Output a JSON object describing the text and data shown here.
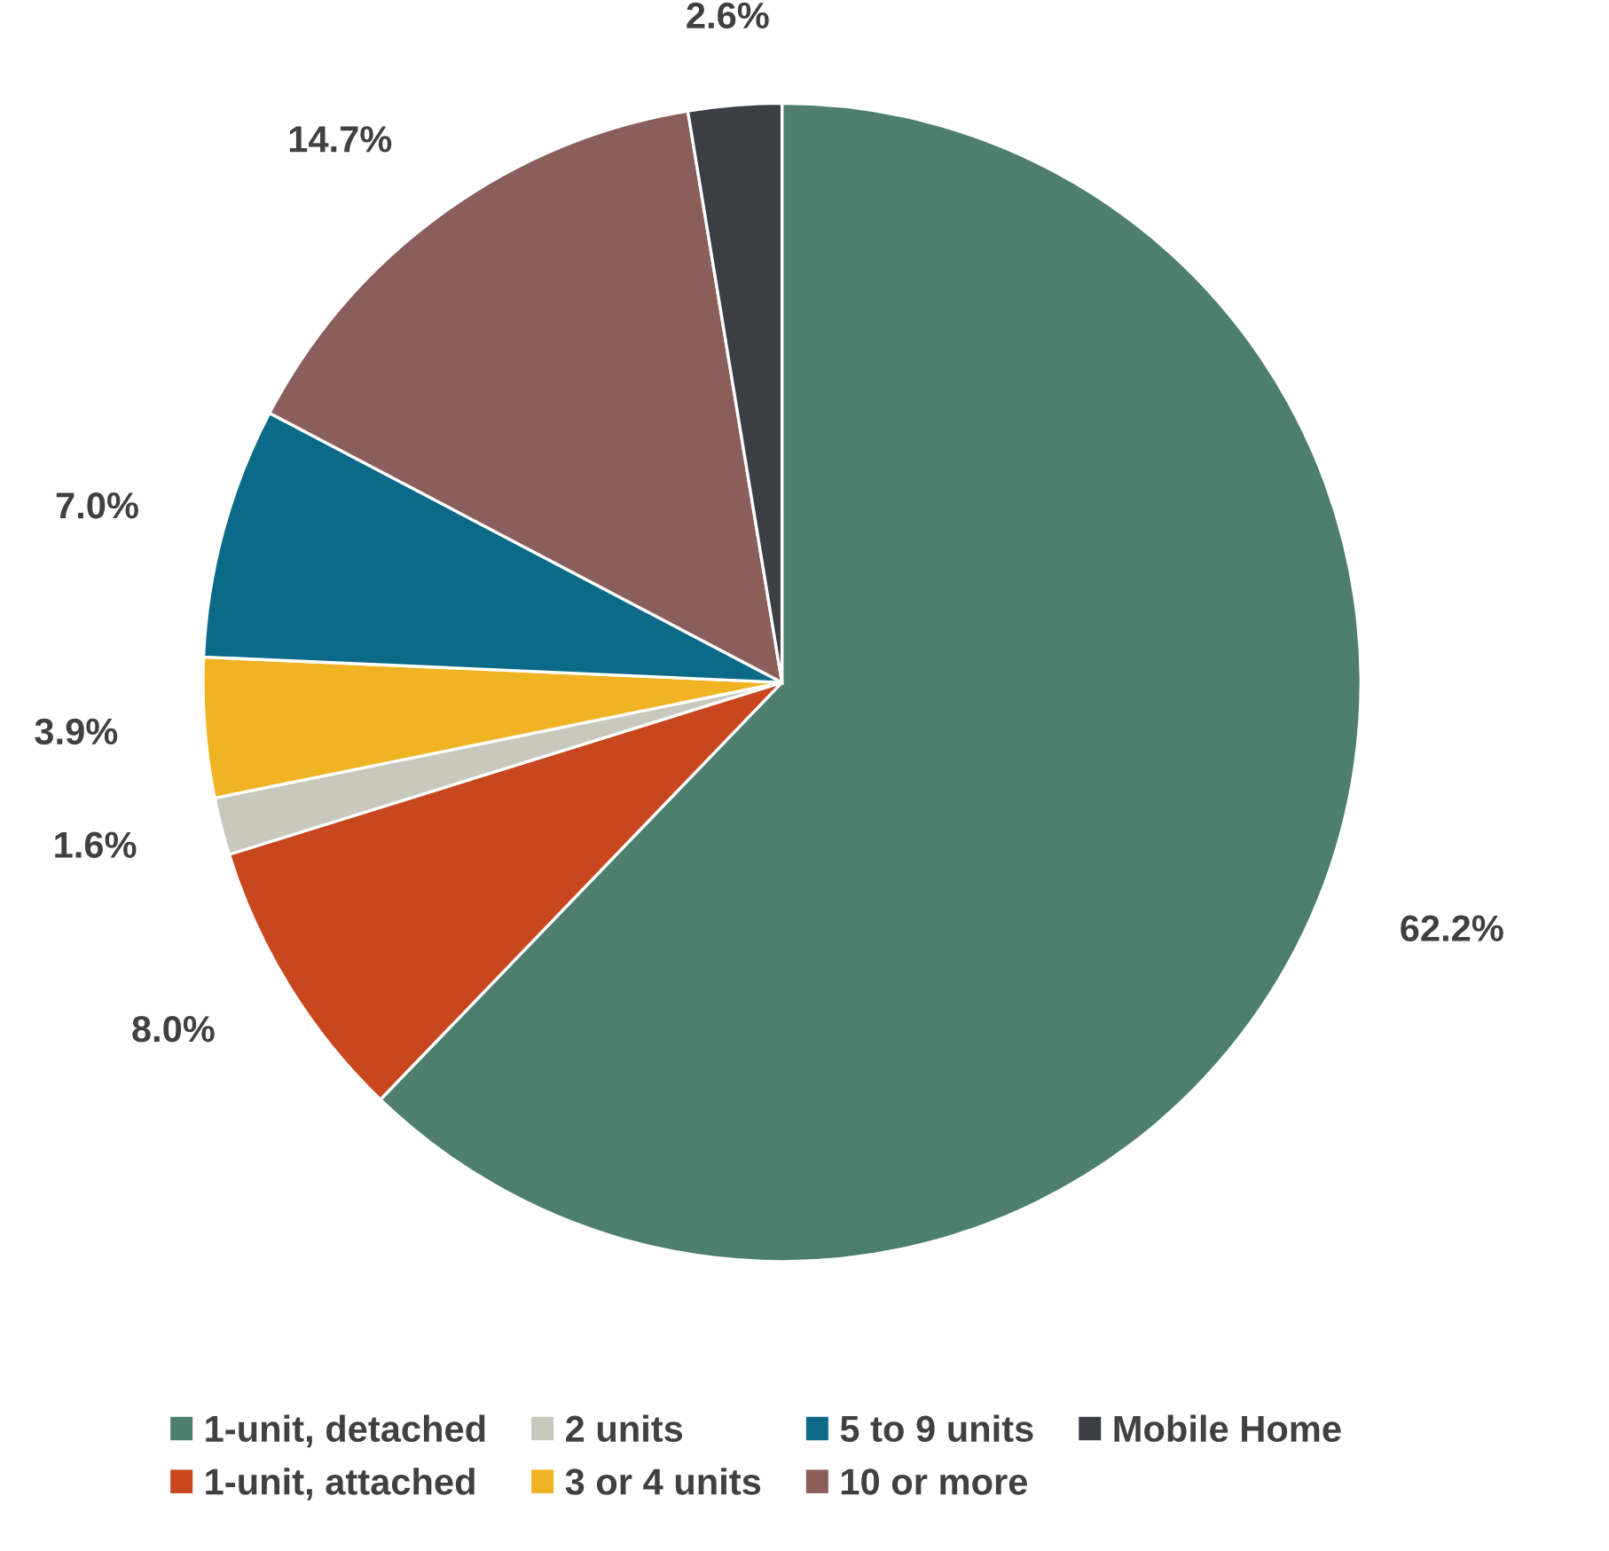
{
  "chart_data": {
    "type": "pie",
    "categories": [
      "1-unit, detached",
      "1-unit, attached",
      "2 units",
      "3 or 4 units",
      "5 to 9 units",
      "10 or more",
      "Mobile Home"
    ],
    "values": [
      62.2,
      8.0,
      1.6,
      3.9,
      7.0,
      14.7,
      2.6
    ],
    "value_labels": [
      "62.2%",
      "8.0%",
      "1.6%",
      "3.9%",
      "7.0%",
      "14.7%",
      "2.6%"
    ],
    "colors": [
      "#4e7f6e",
      "#c8471f",
      "#c8c8bc",
      "#f0b323",
      "#0b6a88",
      "#8a5e5b",
      "#3b3f44"
    ],
    "legend": "bottom"
  }
}
